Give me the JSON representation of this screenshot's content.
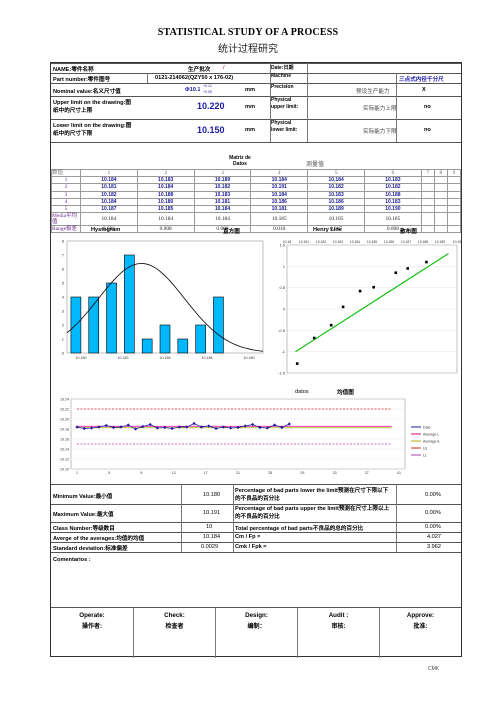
{
  "title": "STATISTICAL STUDY OF A PROCESS",
  "subtitle": "统计过程研究",
  "header": {
    "name_label": "NAME:零件名称",
    "batch_label": "生产批次",
    "batch_value": "/",
    "date_label": "Date:日期",
    "part_number_label": "Part number:零件图号",
    "part_number_value": "0121-214062(QZY50 x 176-02)",
    "machine_label": "Machine",
    "measure_point": "三点式内径千分尺",
    "nominal_label": "Nominal value:名义尺寸值",
    "nominal_value": "Φ10.1",
    "nominal_tol_upper": "+0.12",
    "nominal_tol_lower": "+0.05",
    "unit": "mm",
    "precision_label": "Precision",
    "precision_cn": "预设生产能力",
    "precision_value": "X",
    "upper_label": "Upper limit on the drawing:图纸中的尺寸上限",
    "upper_value": "10.220",
    "upper_phys": "Physical upper limit:",
    "upper_phys_cn": "实际能力上限",
    "upper_phys_value": "no",
    "lower_label": "Lower limit on the drawing:图纸中的尺寸下限",
    "lower_value": "10.150",
    "lower_phys": "Physical lower limit:",
    "lower_phys_cn": "实际能力下限",
    "lower_phys_value": "no"
  },
  "data_table": {
    "caption_en": "Matriz de Datos",
    "caption_cn": "测量值",
    "row_label_header": "数值",
    "columns": [
      "1",
      "2",
      "3",
      "4",
      "5",
      "6",
      "7",
      "8",
      "9"
    ],
    "rows": [
      {
        "label": "1",
        "values": [
          "10.184",
          "10.183",
          "10.189",
          "10.184",
          "10.184",
          "10.183"
        ]
      },
      {
        "label": "2",
        "values": [
          "10.181",
          "10.184",
          "10.182",
          "10.191",
          "10.182",
          "10.182"
        ]
      },
      {
        "label": "3",
        "values": [
          "10.182",
          "10.188",
          "10.183",
          "10.184",
          "10.183",
          "10.188"
        ]
      },
      {
        "label": "4",
        "values": [
          "10.184",
          "10.180",
          "10.181",
          "10.186",
          "10.186",
          "10.183"
        ]
      },
      {
        "label": "5",
        "values": [
          "10.187",
          "10.185",
          "10.184",
          "10.181",
          "10.189",
          "10.190"
        ]
      }
    ],
    "media_label": "Media平均值",
    "media_values": [
      "10.184",
      "10.184",
      "10.184",
      "10.185",
      "10.185",
      "10.185"
    ],
    "range_label": "Range极差",
    "range_values": [
      "0.006",
      "0.008",
      "0.008",
      "0.010",
      "0.007",
      "0.008"
    ]
  },
  "charts": {
    "histogram_title": "Hystogram",
    "histogram_cn": "直方图",
    "henry_title": "Henry Line",
    "henry_cn": "散布图",
    "datos_label": "datos",
    "average_cn": "均值图"
  },
  "chart_data": [
    {
      "type": "bar",
      "title": "Hystogram",
      "categories": [
        "10.180",
        "10.181",
        "10.182",
        "10.183",
        "10.184",
        "10.185",
        "10.186",
        "10.187",
        "10.188",
        "10.189",
        "10.190"
      ],
      "values": [
        4,
        4,
        5,
        7,
        1,
        2,
        1,
        2,
        4,
        0,
        0
      ],
      "x_tick_labels": [
        "10.180",
        "10.183",
        "10.186",
        "10.188",
        "10.180"
      ],
      "ylim": [
        0,
        8
      ],
      "y_ticks": [
        "0",
        "1",
        "2",
        "3",
        "4",
        "5",
        "6",
        "7",
        "8"
      ],
      "normal_curve": true,
      "bar_color": "#00b8ff"
    },
    {
      "type": "scatter",
      "title": "Henry Line",
      "x_tick_labels": [
        "10.18",
        "10.181",
        "10.182",
        "10.183",
        "10.184",
        "10.185",
        "10.186",
        "10.187",
        "10.188",
        "10.189",
        "10.19"
      ],
      "xlim": [
        10.18,
        10.19
      ],
      "ylim": [
        -1.5,
        1.5
      ],
      "y_ticks": [
        "1.5",
        "1",
        "0.5",
        "0",
        "-0.5",
        "-1",
        "-1.5"
      ],
      "points": [
        [
          10.1806,
          -1.28
        ],
        [
          10.1816,
          -0.68
        ],
        [
          10.1826,
          -0.38
        ],
        [
          10.1833,
          0.05
        ],
        [
          10.1843,
          0.42
        ],
        [
          10.1851,
          0.51
        ],
        [
          10.1864,
          0.85
        ],
        [
          10.1871,
          0.95
        ],
        [
          10.1882,
          1.1
        ]
      ],
      "fit_line": [
        [
          10.1805,
          -1.0
        ],
        [
          10.1895,
          1.3
        ]
      ],
      "line_color": "#00c000"
    },
    {
      "type": "line",
      "title": "均值图",
      "x_tick_labels": [
        "1",
        "5",
        "9",
        "13",
        "17",
        "21",
        "25",
        "29",
        "33",
        "37",
        "41"
      ],
      "ylim": [
        10.1,
        10.24
      ],
      "y_ticks": [
        "10.24",
        "10.22",
        "10.20",
        "10.18",
        "10.16",
        "10.14",
        "10.12",
        "10.10"
      ],
      "legend": [
        "Dato",
        "Average L",
        "Average+L",
        "UL",
        "LL"
      ],
      "series": [
        {
          "name": "Dato",
          "values": [
            10.184,
            10.181,
            10.182,
            10.184,
            10.187,
            10.183,
            10.184,
            10.188,
            10.18,
            10.185,
            10.189,
            10.182,
            10.183,
            10.181,
            10.184,
            10.184,
            10.191,
            10.184,
            10.186,
            10.181,
            10.184,
            10.182,
            10.183,
            10.186,
            10.189,
            10.183,
            10.182,
            10.188,
            10.183,
            10.19
          ]
        },
        {
          "name": "Average L",
          "values": [
            10.184
          ]
        },
        {
          "name": "Average+L",
          "values": [
            10.184
          ]
        },
        {
          "name": "UL",
          "values": [
            10.22
          ]
        },
        {
          "name": "LL",
          "values": [
            10.15
          ]
        }
      ],
      "colors": {
        "Dato": "#1a1aa8",
        "Average L": "#e0008a",
        "Average+L": "#b0b000",
        "UL": "#e02020",
        "LL": "#b040b0"
      }
    }
  ],
  "stats": {
    "min_label": "Minimum Value:最小值",
    "min_value": "10.180",
    "max_label": "Maximum Value:最大值",
    "max_value": "10.191",
    "class_label": "Class Number:等级数目",
    "class_value": "10",
    "avg_label": "Averge of the averages:均值的均值",
    "avg_value": "10.184",
    "std_label": "Standard deviation:标准偏差",
    "std_value": "0.0029",
    "bad_lower_label": "Percentage of bad parts lower the limit预测在尺寸下限以下的不良品的百分比",
    "bad_lower_value": "0.00%",
    "bad_upper_label": "Percentage of bad parts upper the limit预测在尺寸上限以上的不良品的百分比",
    "bad_upper_value": "0.00%",
    "bad_total_label": "Total percentage of bad parts不良品的总的百分比",
    "bad_total_value": "0.00%",
    "cm_label": "Cm / Fp =",
    "cm_value": "4.027",
    "cmk_label": "Cmk / Fpk =",
    "cmk_value": "3.962"
  },
  "comments_label": "Comentarios :",
  "signatures": [
    {
      "en": "Operate:",
      "cn": "操作者:"
    },
    {
      "en": "Check:",
      "cn": "检查者"
    },
    {
      "en": "Design:",
      "cn": "编制："
    },
    {
      "en": "Audit :",
      "cn": "审核:"
    },
    {
      "en": "Approve:",
      "cn": "批准:"
    }
  ],
  "footer": "CMK"
}
